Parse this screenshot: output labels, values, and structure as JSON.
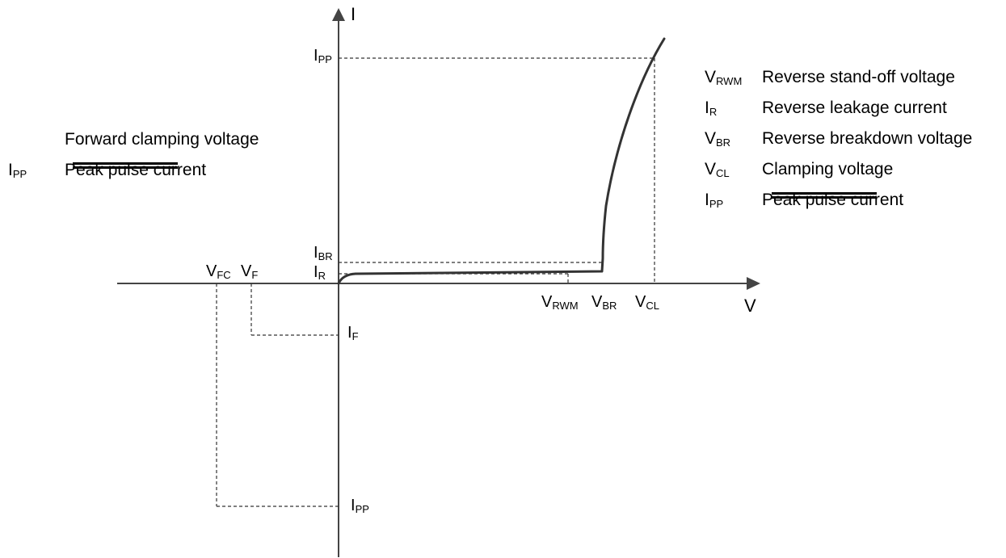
{
  "axes": {
    "x_label": "V",
    "y_label": "I"
  },
  "points": {
    "vfc": {
      "main": "V",
      "sub": "FC"
    },
    "vf": {
      "main": "V",
      "sub": "F"
    },
    "vrwm": {
      "main": "V",
      "sub": "RWM"
    },
    "vbr": {
      "main": "V",
      "sub": "BR"
    },
    "vcl": {
      "main": "V",
      "sub": "CL"
    },
    "ipp_top": {
      "main": "I",
      "sub": "PP"
    },
    "ibr": {
      "main": "I",
      "sub": "BR"
    },
    "ir": {
      "main": "I",
      "sub": "R"
    },
    "if": {
      "main": "I",
      "sub": "F"
    },
    "ipp_bottom": {
      "main": "I",
      "sub": "PP"
    }
  },
  "legend_right": [
    {
      "main": "V",
      "sub": "RWM",
      "text": "Reverse stand-off voltage"
    },
    {
      "main": "I",
      "sub": "R",
      "text": "Reverse leakage current"
    },
    {
      "main": "V",
      "sub": "BR",
      "text": "Reverse breakdown voltage"
    },
    {
      "main": "V",
      "sub": "CL",
      "text": "Clamping voltage"
    },
    {
      "main": "I",
      "sub": "PP",
      "text": "Peak pulse current"
    }
  ],
  "legend_left": [
    {
      "main": "",
      "sub": "",
      "text": "Forward clamping voltage"
    },
    {
      "main": "I",
      "sub": "PP",
      "text": "Peak pulse current"
    }
  ]
}
